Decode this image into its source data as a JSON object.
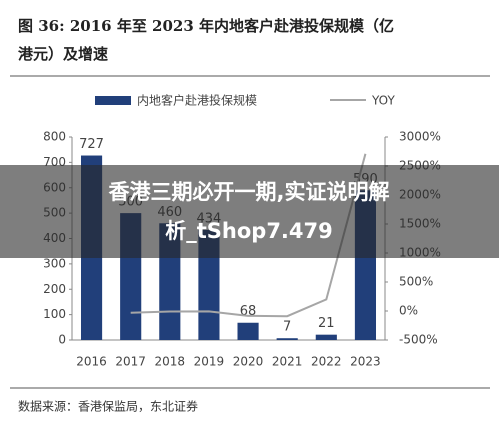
{
  "chart_data": {
    "type": "bar",
    "title_lines": [
      "图 36: 2016 年至 2023 年内地客户赴港投保规模（亿",
      "港元）及增速"
    ],
    "categories": [
      "2016",
      "2017",
      "2018",
      "2019",
      "2020",
      "2021",
      "2022",
      "2023"
    ],
    "series": [
      {
        "name": "内地客户赴港投保规模",
        "color": "#213f7a",
        "type": "bar",
        "values": [
          727,
          500,
          460,
          434,
          68,
          7,
          21,
          590
        ]
      },
      {
        "name": "YOY",
        "color": "#a6a6a6",
        "type": "line",
        "axis": "y2",
        "values": [
          null,
          -31,
          -8,
          -6,
          -84,
          -90,
          200,
          2710
        ]
      }
    ],
    "ylim": [
      0,
      800
    ],
    "yticks": [
      0,
      100,
      200,
      300,
      400,
      500,
      600,
      700,
      800
    ],
    "y2lim": [
      -500,
      3000
    ],
    "y2ticks": [
      {
        "value": -500,
        "label": "-500%"
      },
      {
        "value": 0,
        "label": "0%"
      },
      {
        "value": 500,
        "label": "500%"
      },
      {
        "value": 1000,
        "label": "1000%"
      },
      {
        "value": 1500,
        "label": "1500%"
      },
      {
        "value": 2000,
        "label": "2000%"
      },
      {
        "value": 2500,
        "label": "2500%"
      },
      {
        "value": 3000,
        "label": "3000%"
      }
    ],
    "source": "数据来源：香港保监局，东北证券",
    "overlay": [
      "香港三期必开一期,实证说明解",
      "析_tShop7.479"
    ]
  }
}
